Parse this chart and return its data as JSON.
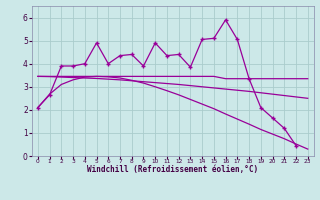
{
  "xlabel": "Windchill (Refroidissement éolien,°C)",
  "bg_color": "#cce8e8",
  "line_color": "#990099",
  "grid_color": "#aacccc",
  "x_data": [
    0,
    1,
    2,
    3,
    4,
    5,
    6,
    7,
    8,
    9,
    10,
    11,
    12,
    13,
    14,
    15,
    16,
    17,
    18,
    19,
    20,
    21,
    22,
    23
  ],
  "y_main": [
    2.1,
    2.65,
    3.9,
    3.9,
    4.0,
    4.9,
    4.0,
    4.35,
    4.4,
    3.9,
    4.9,
    4.35,
    4.4,
    3.85,
    5.05,
    5.1,
    5.9,
    5.05,
    3.35,
    2.1,
    1.65,
    1.2,
    0.45,
    null
  ],
  "y_horiz": [
    3.45,
    3.45,
    3.45,
    3.45,
    3.45,
    3.45,
    3.45,
    3.45,
    3.45,
    3.45,
    3.45,
    3.45,
    3.45,
    3.45,
    3.45,
    3.45,
    3.35,
    3.35,
    3.35,
    3.35,
    3.35,
    3.35,
    3.35,
    3.35
  ],
  "y_bell": [
    2.1,
    2.68,
    3.1,
    3.3,
    3.42,
    3.45,
    3.43,
    3.38,
    3.28,
    3.16,
    3.0,
    2.83,
    2.65,
    2.45,
    2.25,
    2.05,
    1.82,
    1.6,
    1.38,
    1.15,
    0.95,
    0.75,
    0.52,
    0.3
  ],
  "y_linear": [
    3.45,
    3.44,
    3.42,
    3.4,
    3.38,
    3.36,
    3.33,
    3.3,
    3.26,
    3.22,
    3.18,
    3.14,
    3.1,
    3.05,
    3.0,
    2.95,
    2.9,
    2.85,
    2.8,
    2.74,
    2.68,
    2.62,
    2.56,
    2.5
  ],
  "ylim": [
    0,
    6.5
  ],
  "xlim": [
    -0.5,
    23.5
  ],
  "yticks": [
    0,
    1,
    2,
    3,
    4,
    5,
    6
  ]
}
